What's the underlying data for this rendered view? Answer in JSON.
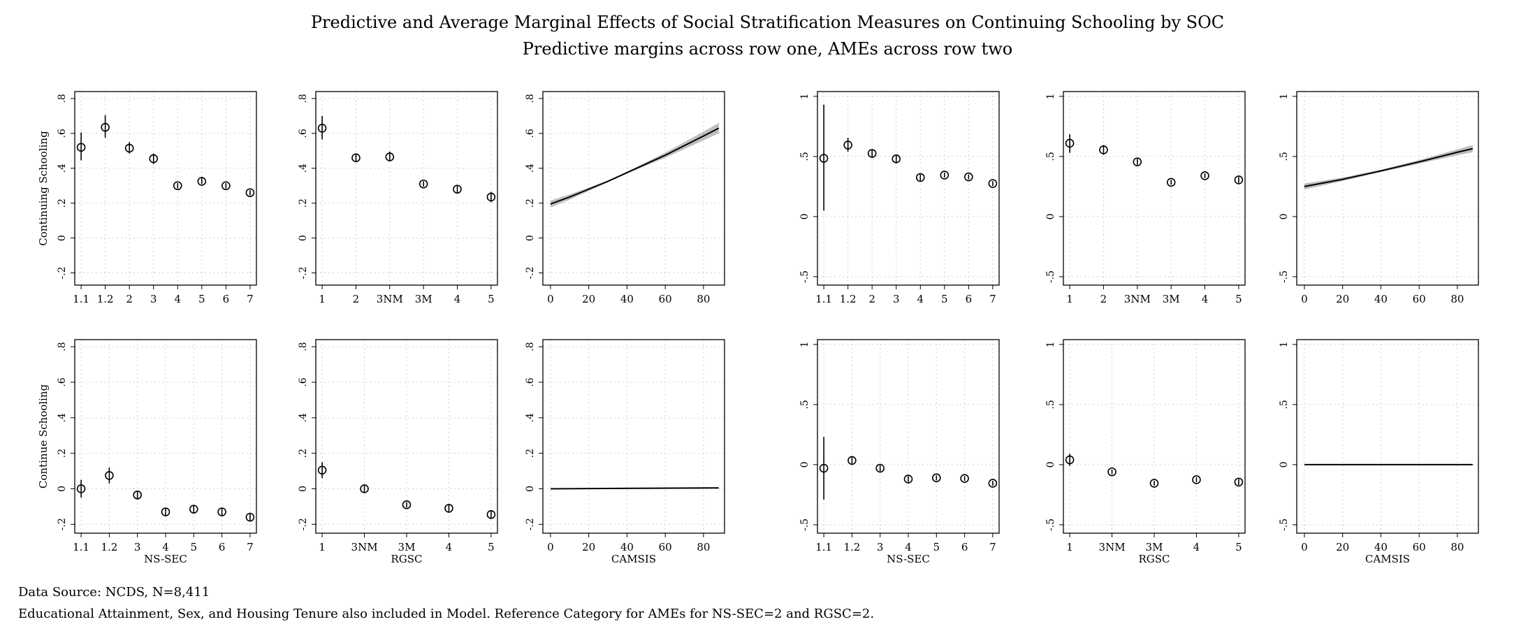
{
  "header": {
    "title": "Predictive and Average Marginal Effects of Social Stratification Measures on Continuing Schooling by SOC",
    "subtitle": "Predictive margins across row one, AMEs across row two"
  },
  "notes": {
    "line1": "Data Source: NCDS, N=8,411",
    "line2": "Educational Attainment, Sex, and Housing Tenure also included in Model. Reference Category for AMEs for NS-SEC=2 and RGSC=2."
  },
  "colors": {
    "ink": "#000000",
    "grid": "#cfcfcf",
    "ci_band": "#b4b4b4"
  },
  "chart_data": [
    {
      "type": "scatter",
      "row": 1,
      "col": 1,
      "grid": true,
      "ylabel": "Continuing Schooling",
      "xlabel": "",
      "yticks": [
        -0.2,
        0,
        0.2,
        0.4,
        0.6,
        0.8
      ],
      "ytick_labels": [
        "-.2",
        "0",
        ".2",
        ".4",
        ".6",
        ".8"
      ],
      "ylim": [
        -0.27,
        0.84
      ],
      "categories": [
        "1.1",
        "1.2",
        "2",
        "3",
        "4",
        "5",
        "6",
        "7"
      ],
      "values": [
        0.52,
        0.635,
        0.515,
        0.455,
        0.3,
        0.325,
        0.3,
        0.26
      ],
      "ci_low": [
        0.445,
        0.575,
        0.485,
        0.425,
        0.285,
        0.31,
        0.285,
        0.245
      ],
      "ci_high": [
        0.605,
        0.705,
        0.55,
        0.485,
        0.315,
        0.345,
        0.315,
        0.275
      ]
    },
    {
      "type": "scatter",
      "row": 1,
      "col": 2,
      "grid": true,
      "ylabel": "",
      "xlabel": "",
      "yticks": [
        -0.2,
        0,
        0.2,
        0.4,
        0.6,
        0.8
      ],
      "ytick_labels": [
        "-.2",
        "0",
        ".2",
        ".4",
        ".6",
        ".8"
      ],
      "ylim": [
        -0.27,
        0.84
      ],
      "categories": [
        "1",
        "2",
        "3NM",
        "3M",
        "4",
        "5"
      ],
      "values": [
        0.63,
        0.46,
        0.465,
        0.31,
        0.28,
        0.235
      ],
      "ci_low": [
        0.565,
        0.44,
        0.44,
        0.295,
        0.26,
        0.205
      ],
      "ci_high": [
        0.7,
        0.48,
        0.495,
        0.325,
        0.3,
        0.265
      ]
    },
    {
      "type": "line",
      "row": 1,
      "col": 3,
      "grid": true,
      "ylabel": "",
      "xlabel": "",
      "yticks": [
        -0.2,
        0,
        0.2,
        0.4,
        0.6,
        0.8
      ],
      "ytick_labels": [
        "-.2",
        "0",
        ".2",
        ".4",
        ".6",
        ".8"
      ],
      "ylim": [
        -0.27,
        0.84
      ],
      "xticks": [
        0,
        20,
        40,
        60,
        80
      ],
      "xlim": [
        -4,
        91
      ],
      "x": [
        0,
        10,
        20,
        30,
        40,
        50,
        60,
        70,
        80,
        88
      ],
      "values": [
        0.195,
        0.235,
        0.28,
        0.325,
        0.375,
        0.425,
        0.475,
        0.53,
        0.585,
        0.63
      ],
      "ci_low": [
        0.175,
        0.22,
        0.27,
        0.32,
        0.37,
        0.415,
        0.46,
        0.51,
        0.56,
        0.6
      ],
      "ci_high": [
        0.215,
        0.25,
        0.29,
        0.33,
        0.38,
        0.435,
        0.49,
        0.55,
        0.61,
        0.66
      ]
    },
    {
      "type": "scatter",
      "row": 1,
      "col": 4,
      "grid": true,
      "ylabel": "",
      "xlabel": "",
      "yticks": [
        -0.5,
        0,
        0.5,
        1
      ],
      "ytick_labels": [
        "-.5",
        "0",
        ".5",
        "1"
      ],
      "ylim": [
        -0.57,
        1.04
      ],
      "categories": [
        "1.1",
        "1.2",
        "2",
        "3",
        "4",
        "5",
        "6",
        "7"
      ],
      "values": [
        0.485,
        0.595,
        0.525,
        0.48,
        0.325,
        0.345,
        0.33,
        0.275
      ],
      "ci_low": [
        0.05,
        0.54,
        0.49,
        0.445,
        0.3,
        0.325,
        0.31,
        0.255
      ],
      "ci_high": [
        0.93,
        0.655,
        0.56,
        0.515,
        0.35,
        0.365,
        0.35,
        0.295
      ]
    },
    {
      "type": "scatter",
      "row": 1,
      "col": 5,
      "grid": true,
      "ylabel": "",
      "xlabel": "",
      "yticks": [
        -0.5,
        0,
        0.5,
        1
      ],
      "ytick_labels": [
        "-.5",
        "0",
        ".5",
        "1"
      ],
      "ylim": [
        -0.57,
        1.04
      ],
      "categories": [
        "1",
        "2",
        "3NM",
        "3M",
        "4",
        "5"
      ],
      "values": [
        0.61,
        0.555,
        0.455,
        0.285,
        0.34,
        0.305
      ],
      "ci_low": [
        0.53,
        0.515,
        0.43,
        0.265,
        0.32,
        0.28
      ],
      "ci_high": [
        0.685,
        0.595,
        0.48,
        0.305,
        0.36,
        0.33
      ]
    },
    {
      "type": "line",
      "row": 1,
      "col": 6,
      "grid": true,
      "ylabel": "",
      "xlabel": "",
      "yticks": [
        -0.5,
        0,
        0.5,
        1
      ],
      "ytick_labels": [
        "-.5",
        "0",
        ".5",
        "1"
      ],
      "ylim": [
        -0.57,
        1.04
      ],
      "xticks": [
        0,
        20,
        40,
        60,
        80
      ],
      "xlim": [
        -4,
        91
      ],
      "x": [
        0,
        20,
        40,
        60,
        80,
        88
      ],
      "values": [
        0.25,
        0.31,
        0.38,
        0.455,
        0.535,
        0.565
      ],
      "ci_low": [
        0.225,
        0.295,
        0.37,
        0.44,
        0.51,
        0.535
      ],
      "ci_high": [
        0.275,
        0.325,
        0.39,
        0.47,
        0.56,
        0.595
      ]
    },
    {
      "type": "scatter",
      "row": 2,
      "col": 1,
      "grid": true,
      "ylabel": "Continue Schooling",
      "xlabel": "NS-SEC",
      "yticks": [
        -0.2,
        0,
        0.2,
        0.4,
        0.6,
        0.8
      ],
      "ytick_labels": [
        "-.2",
        "0",
        ".2",
        ".4",
        ".6",
        ".8"
      ],
      "ylim": [
        -0.25,
        0.84
      ],
      "categories": [
        "1.1",
        "1.2",
        "3",
        "4",
        "5",
        "6",
        "7"
      ],
      "values": [
        0.0,
        0.075,
        -0.035,
        -0.13,
        -0.115,
        -0.13,
        -0.16
      ],
      "ci_low": [
        -0.05,
        0.03,
        -0.06,
        -0.15,
        -0.135,
        -0.15,
        -0.18
      ],
      "ci_high": [
        0.05,
        0.12,
        -0.01,
        -0.11,
        -0.095,
        -0.11,
        -0.14
      ]
    },
    {
      "type": "scatter",
      "row": 2,
      "col": 2,
      "grid": true,
      "ylabel": "",
      "xlabel": "RGSC",
      "yticks": [
        -0.2,
        0,
        0.2,
        0.4,
        0.6,
        0.8
      ],
      "ytick_labels": [
        "-.2",
        "0",
        ".2",
        ".4",
        ".6",
        ".8"
      ],
      "ylim": [
        -0.25,
        0.84
      ],
      "categories": [
        "1",
        "3NM",
        "3M",
        "4",
        "5"
      ],
      "values": [
        0.105,
        0.0,
        -0.09,
        -0.11,
        -0.145
      ],
      "ci_low": [
        0.06,
        -0.02,
        -0.105,
        -0.13,
        -0.17
      ],
      "ci_high": [
        0.15,
        0.02,
        -0.075,
        -0.09,
        -0.12
      ]
    },
    {
      "type": "line",
      "row": 2,
      "col": 3,
      "grid": true,
      "ylabel": "",
      "xlabel": "CAMSIS",
      "yticks": [
        -0.2,
        0,
        0.2,
        0.4,
        0.6,
        0.8
      ],
      "ytick_labels": [
        "-.2",
        "0",
        ".2",
        ".4",
        ".6",
        ".8"
      ],
      "ylim": [
        -0.25,
        0.84
      ],
      "xticks": [
        0,
        20,
        40,
        60,
        80
      ],
      "xlim": [
        -4,
        91
      ],
      "x": [
        0,
        88
      ],
      "values": [
        0.0,
        0.005
      ]
    },
    {
      "type": "scatter",
      "row": 2,
      "col": 4,
      "grid": true,
      "ylabel": "",
      "xlabel": "NS-SEC",
      "yticks": [
        -0.5,
        0,
        0.5,
        1
      ],
      "ytick_labels": [
        "-.5",
        "0",
        ".5",
        "1"
      ],
      "ylim": [
        -0.57,
        1.04
      ],
      "categories": [
        "1.1",
        "1.2",
        "3",
        "4",
        "5",
        "6",
        "7"
      ],
      "values": [
        -0.03,
        0.035,
        -0.03,
        -0.12,
        -0.11,
        -0.115,
        -0.155
      ],
      "ci_low": [
        -0.29,
        0.0,
        -0.055,
        -0.145,
        -0.13,
        -0.135,
        -0.175
      ],
      "ci_high": [
        0.23,
        0.07,
        -0.005,
        -0.095,
        -0.09,
        -0.095,
        -0.135
      ]
    },
    {
      "type": "scatter",
      "row": 2,
      "col": 5,
      "grid": true,
      "ylabel": "",
      "xlabel": "RGSC",
      "yticks": [
        -0.5,
        0,
        0.5,
        1
      ],
      "ytick_labels": [
        "-.5",
        "0",
        ".5",
        "1"
      ],
      "ylim": [
        -0.57,
        1.04
      ],
      "categories": [
        "1",
        "3NM",
        "3M",
        "4",
        "5"
      ],
      "values": [
        0.04,
        -0.06,
        -0.155,
        -0.125,
        -0.145
      ],
      "ci_low": [
        -0.01,
        -0.08,
        -0.175,
        -0.145,
        -0.17
      ],
      "ci_high": [
        0.09,
        -0.04,
        -0.135,
        -0.105,
        -0.12
      ]
    },
    {
      "type": "line",
      "row": 2,
      "col": 6,
      "grid": true,
      "ylabel": "",
      "xlabel": "CAMSIS",
      "yticks": [
        -0.5,
        0,
        0.5,
        1
      ],
      "ytick_labels": [
        "-.5",
        "0",
        ".5",
        "1"
      ],
      "ylim": [
        -0.57,
        1.04
      ],
      "xticks": [
        0,
        20,
        40,
        60,
        80
      ],
      "xlim": [
        -4,
        91
      ],
      "x": [
        0,
        88
      ],
      "values": [
        0.0,
        0.0
      ]
    }
  ]
}
